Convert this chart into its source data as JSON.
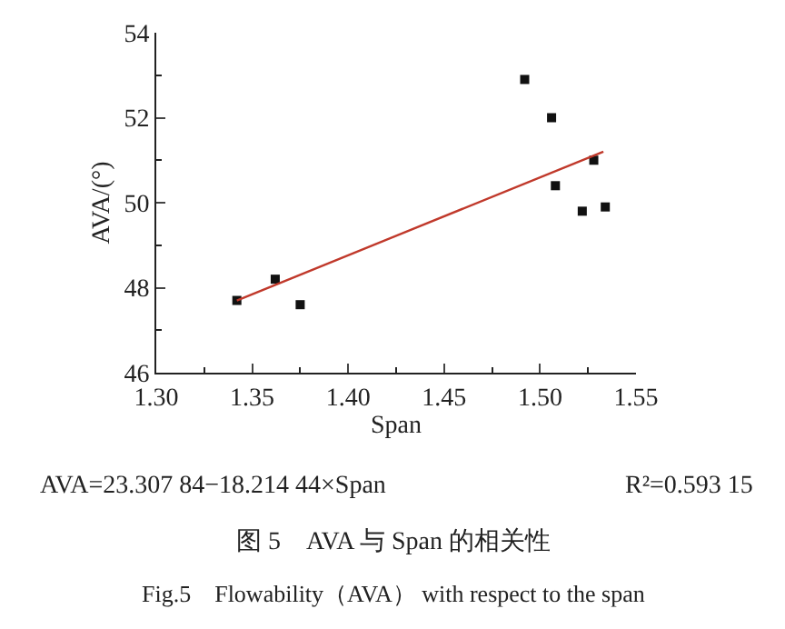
{
  "chart_data": {
    "type": "scatter",
    "xlabel": "Span",
    "ylabel": "AVA/(°)",
    "xlim": [
      1.3,
      1.55
    ],
    "xticks": [
      {
        "value": 1.3,
        "label": "1.30"
      },
      {
        "value": 1.35,
        "label": "1.35"
      },
      {
        "value": 1.4,
        "label": "1.40"
      },
      {
        "value": 1.45,
        "label": "1.45"
      },
      {
        "value": 1.5,
        "label": "1.50"
      },
      {
        "value": 1.55,
        "label": "1.55"
      }
    ],
    "ylim": [
      46,
      54
    ],
    "yticks": [
      46,
      48,
      50,
      52,
      54
    ],
    "series": [
      {
        "marker": "square",
        "color": "#111111",
        "x": [
          1.342,
          1.362,
          1.375,
          1.492,
          1.506,
          1.508,
          1.522,
          1.528,
          1.534
        ],
        "values": [
          47.7,
          48.2,
          47.6,
          52.9,
          52.0,
          50.4,
          49.8,
          51.0,
          49.9
        ]
      },
      {
        "type": "line",
        "marker": "none",
        "color": "#c0392b",
        "line_style": "solid",
        "x": [
          1.342,
          1.533
        ],
        "values": [
          47.7,
          51.2
        ]
      }
    ],
    "annotations": [
      "AVA=23.307 84−18.214 44×Span",
      "R²=0.593 15",
      "图 5　AVA 与 Span 的相关性",
      "Fig.5　Flowability（AVA） with respect to the span"
    ]
  }
}
